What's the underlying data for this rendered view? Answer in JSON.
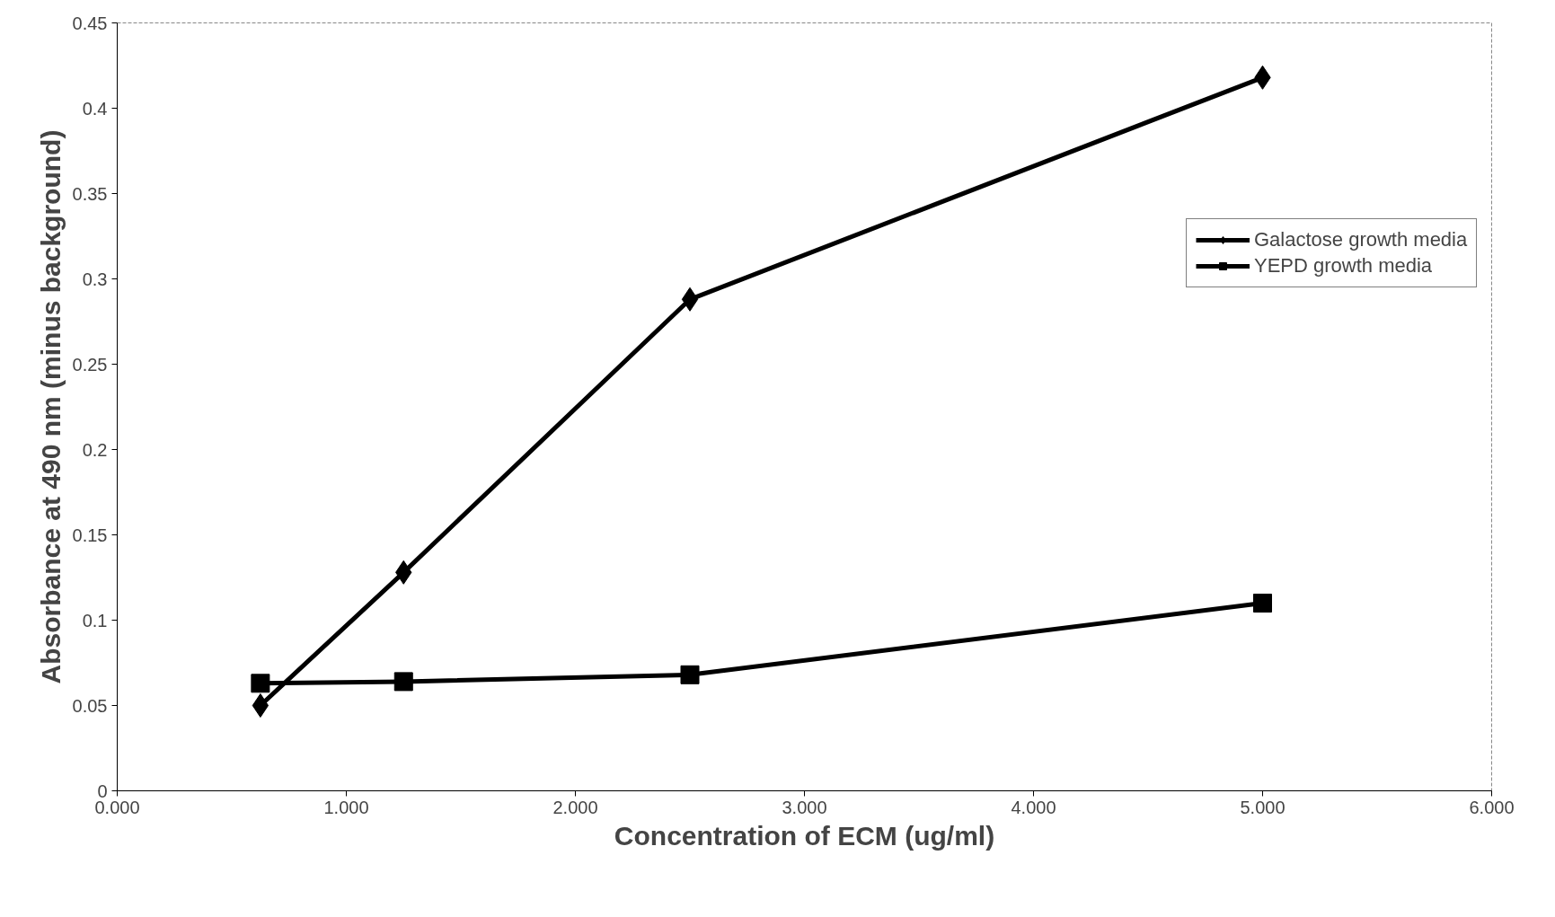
{
  "chart_data": {
    "type": "line",
    "xlabel": "Concentration of ECM (ug/ml)",
    "ylabel": "Absorbance at 490 nm (minus background)",
    "x": [
      0.625,
      1.25,
      2.5,
      5.0
    ],
    "series": [
      {
        "name": "Galactose growth media",
        "color": "#000000",
        "marker": "diamond",
        "values": [
          0.05,
          0.128,
          0.288,
          0.418
        ]
      },
      {
        "name": "YEPD growth media",
        "color": "#000000",
        "marker": "square",
        "values": [
          0.063,
          0.064,
          0.068,
          0.11
        ]
      }
    ],
    "xlim": [
      0,
      6
    ],
    "xticks": [
      {
        "value": 0,
        "label": "0.000"
      },
      {
        "value": 1,
        "label": "1.000"
      },
      {
        "value": 2,
        "label": "2.000"
      },
      {
        "value": 3,
        "label": "3.000"
      },
      {
        "value": 4,
        "label": "4.000"
      },
      {
        "value": 5,
        "label": "5.000"
      },
      {
        "value": 6,
        "label": "6.000"
      }
    ],
    "ylim": [
      0,
      0.45
    ],
    "yticks": [
      0,
      0.05,
      0.1,
      0.15,
      0.2,
      0.25,
      0.3,
      0.35,
      0.4,
      0.45
    ],
    "grid": false,
    "legend": "top right",
    "line_style": "solid"
  }
}
